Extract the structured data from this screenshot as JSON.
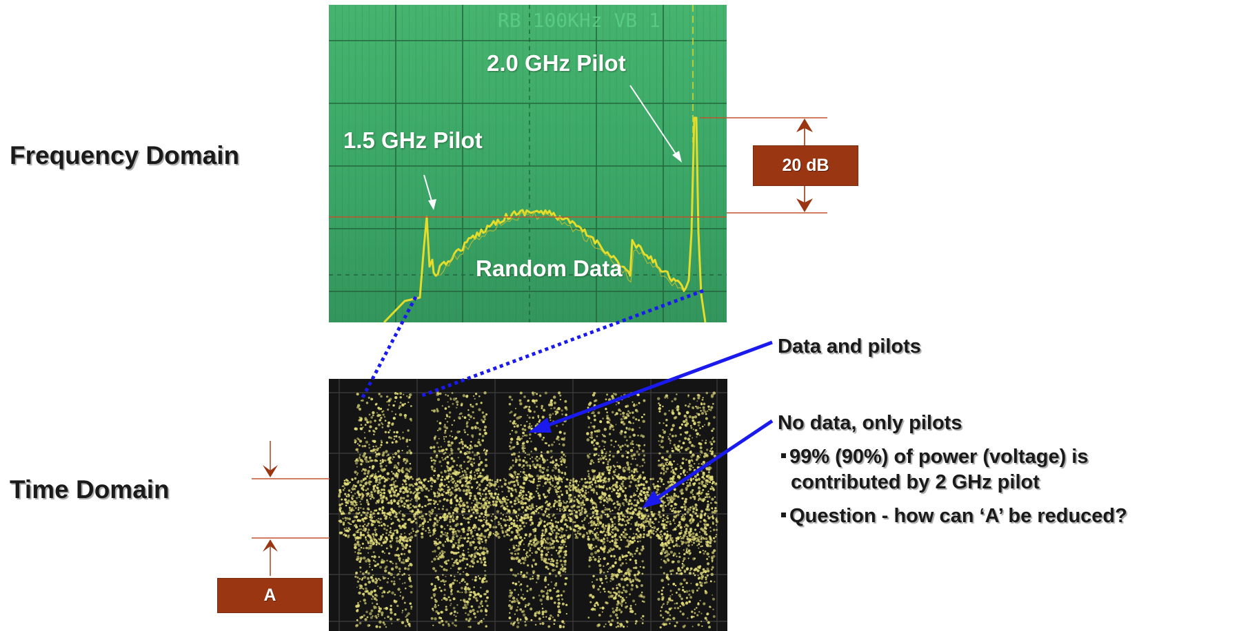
{
  "labels": {
    "frequency_domain": "Frequency Domain",
    "time_domain": "Time Domain"
  },
  "frequency_panel": {
    "header_text": "RB 100KHz  VB 1",
    "pilot_2ghz": "2.0 GHz Pilot",
    "pilot_1_5ghz": "1.5 GHz Pilot",
    "random_data": "Random Data"
  },
  "annotations": {
    "db_box": "20 dB",
    "a_box": "A",
    "data_and_pilots": "Data and pilots",
    "no_data": "No data, only pilots",
    "bullets": [
      "99% (90%) of power (voltage) is",
      "contributed by 2 GHz pilot",
      "Question - how can ‘A’ be reduced?"
    ]
  },
  "colors": {
    "screen_green": "#3fae6a",
    "trace_yellow": "#e8e01a",
    "box_brown": "#9b3612",
    "arrow_blue": "#1a1aee",
    "marker_brown": "#9b3612"
  }
}
